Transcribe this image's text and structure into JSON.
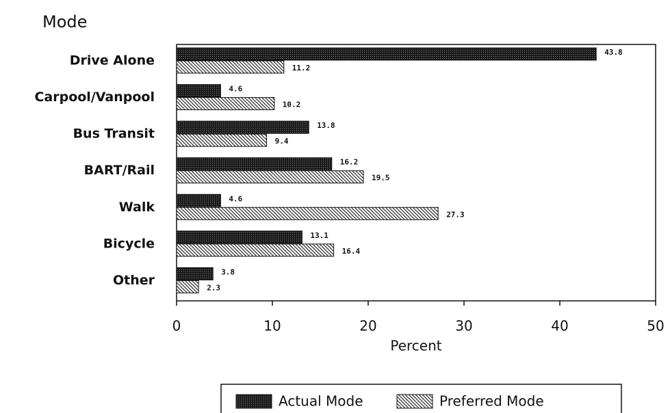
{
  "chart_data": {
    "type": "hbar",
    "ylabel": "Mode",
    "xlabel": "Percent",
    "categories": [
      "Drive Alone",
      "Carpool/Vanpool",
      "Bus Transit",
      "BART/Rail",
      "Walk",
      "Bicycle",
      "Other"
    ],
    "series": [
      {
        "name": "Actual Mode",
        "color": "#1a1a1a",
        "values": [
          43.8,
          4.6,
          13.8,
          16.2,
          4.6,
          13.1,
          3.8
        ]
      },
      {
        "name": "Preferred Mode",
        "color": "#2a2a2a",
        "values": [
          11.2,
          10.2,
          9.4,
          19.5,
          27.3,
          16.4,
          2.3
        ]
      }
    ],
    "xlim": [
      0,
      50
    ],
    "xticks": [
      0,
      10,
      20,
      30,
      40,
      50
    ],
    "legend": "bottom"
  }
}
